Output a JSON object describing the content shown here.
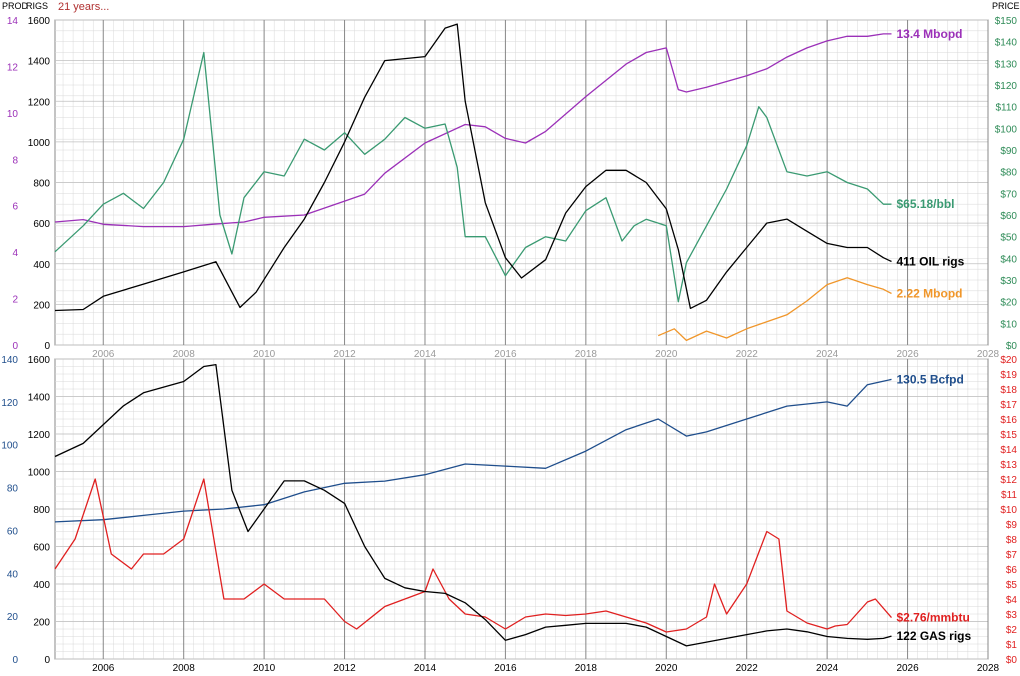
{
  "header": {
    "prod_label": "PROD",
    "rigs_label": "RIGS",
    "period_label": "21 years...",
    "price_label": "PRICE"
  },
  "colors": {
    "oil_prod": "#9b30b8",
    "oil_price": "#3a9a72",
    "oil_rigs": "#000000",
    "ngl_prod": "#f0962a",
    "gas_prod": "#1f4e8c",
    "gas_price": "#e02020",
    "gas_rigs": "#000000",
    "grid_minor": "#d8d8d8",
    "grid_major": "#888888",
    "axis_text_left_oil": "#9b30b8",
    "axis_text_left_gas": "#1f4e8c",
    "axis_text_right_oil": "#2e8b57",
    "axis_text_right_gas": "#e02020"
  },
  "chart_data": [
    {
      "panel": "oil",
      "type": "line",
      "x_ticks": [
        "2006",
        "2008",
        "2010",
        "2012",
        "2014",
        "2016",
        "2018",
        "2020",
        "2022",
        "2024",
        "2026",
        "2028"
      ],
      "xlim": [
        2004.8,
        2028.0
      ],
      "left_axis_prod": {
        "ticks": [
          "0",
          "2",
          "4",
          "6",
          "8",
          "10",
          "12",
          "14"
        ],
        "lim": [
          0,
          14
        ]
      },
      "left_axis_rigs": {
        "ticks": [
          "0",
          "200",
          "400",
          "600",
          "800",
          "1000",
          "1200",
          "1400",
          "1600"
        ],
        "lim": [
          0,
          1600
        ]
      },
      "right_axis_price": {
        "ticks": [
          "$0",
          "$10",
          "$20",
          "$30",
          "$40",
          "$50",
          "$60",
          "$70",
          "$80",
          "$90",
          "$100",
          "$110",
          "$120",
          "$130",
          "$140",
          "$150"
        ],
        "lim": [
          0,
          150
        ]
      },
      "grid": true,
      "series": [
        {
          "key": "oil_prod",
          "axis": "prod",
          "end_label": "13.4 Mbopd",
          "x": [
            2004.8,
            2005.5,
            2006.0,
            2007.0,
            2008.0,
            2008.7,
            2009.5,
            2010.0,
            2011.0,
            2012.0,
            2012.5,
            2013.0,
            2014.0,
            2015.0,
            2015.5,
            2016.0,
            2016.5,
            2017.0,
            2018.0,
            2019.0,
            2019.5,
            2020.0,
            2020.3,
            2020.5,
            2021.0,
            2022.0,
            2022.5,
            2023.0,
            2023.5,
            2024.0,
            2024.5,
            2025.0,
            2025.4,
            2025.6
          ],
          "y": [
            5.3,
            5.4,
            5.2,
            5.1,
            5.1,
            5.2,
            5.3,
            5.5,
            5.6,
            6.2,
            6.5,
            7.4,
            8.7,
            9.5,
            9.4,
            8.9,
            8.7,
            9.2,
            10.7,
            12.1,
            12.6,
            12.8,
            11.0,
            10.9,
            11.1,
            11.6,
            11.9,
            12.4,
            12.8,
            13.1,
            13.3,
            13.3,
            13.4,
            13.4
          ]
        },
        {
          "key": "oil_price",
          "axis": "price",
          "end_label": "$65.18/bbl",
          "x": [
            2004.8,
            2005.5,
            2006.0,
            2006.5,
            2007.0,
            2007.5,
            2008.0,
            2008.5,
            2008.9,
            2009.2,
            2009.5,
            2010.0,
            2010.5,
            2011.0,
            2011.5,
            2012.0,
            2012.5,
            2013.0,
            2013.5,
            2014.0,
            2014.5,
            2014.8,
            2015.0,
            2015.5,
            2016.0,
            2016.5,
            2017.0,
            2017.5,
            2018.0,
            2018.5,
            2018.9,
            2019.2,
            2019.5,
            2020.0,
            2020.3,
            2020.5,
            2021.0,
            2021.5,
            2022.0,
            2022.3,
            2022.5,
            2023.0,
            2023.5,
            2024.0,
            2024.5,
            2025.0,
            2025.4,
            2025.6
          ],
          "y": [
            43,
            55,
            65,
            70,
            63,
            75,
            95,
            135,
            60,
            42,
            68,
            80,
            78,
            95,
            90,
            98,
            88,
            95,
            105,
            100,
            102,
            82,
            50,
            50,
            32,
            45,
            50,
            48,
            62,
            68,
            48,
            55,
            58,
            55,
            20,
            38,
            55,
            72,
            92,
            110,
            105,
            80,
            78,
            80,
            75,
            72,
            65,
            65
          ]
        },
        {
          "key": "oil_rigs",
          "axis": "rigs",
          "end_label": "411 OIL rigs",
          "x": [
            2004.8,
            2005.5,
            2006.0,
            2007.0,
            2008.0,
            2008.8,
            2009.4,
            2009.8,
            2010.5,
            2011.0,
            2011.5,
            2012.0,
            2012.5,
            2013.0,
            2013.5,
            2014.0,
            2014.5,
            2014.8,
            2015.0,
            2015.5,
            2016.0,
            2016.4,
            2017.0,
            2017.5,
            2018.0,
            2018.5,
            2019.0,
            2019.5,
            2020.0,
            2020.3,
            2020.6,
            2021.0,
            2021.5,
            2022.0,
            2022.5,
            2023.0,
            2023.5,
            2024.0,
            2024.5,
            2025.0,
            2025.4,
            2025.6
          ],
          "y": [
            170,
            175,
            240,
            300,
            360,
            410,
            185,
            260,
            480,
            620,
            800,
            1000,
            1220,
            1400,
            1410,
            1420,
            1560,
            1580,
            1200,
            700,
            430,
            330,
            420,
            650,
            780,
            860,
            860,
            800,
            670,
            470,
            180,
            220,
            360,
            480,
            600,
            620,
            560,
            500,
            480,
            480,
            430,
            411
          ]
        },
        {
          "key": "ngl_prod",
          "axis": "prod",
          "end_label": "2.22 Mbopd",
          "x": [
            2019.8,
            2020.2,
            2020.5,
            2021.0,
            2021.5,
            2022.0,
            2022.5,
            2023.0,
            2023.5,
            2024.0,
            2024.5,
            2025.0,
            2025.4,
            2025.6
          ],
          "y": [
            0.4,
            0.7,
            0.2,
            0.6,
            0.3,
            0.7,
            1.0,
            1.3,
            1.9,
            2.6,
            2.9,
            2.6,
            2.4,
            2.22
          ]
        }
      ]
    },
    {
      "panel": "gas",
      "type": "line",
      "x_ticks": [
        "2006",
        "2008",
        "2010",
        "2012",
        "2014",
        "2016",
        "2018",
        "2020",
        "2022",
        "2024",
        "2026",
        "2028"
      ],
      "xlim": [
        2004.8,
        2028.0
      ],
      "left_axis_prod": {
        "ticks": [
          "0",
          "20",
          "40",
          "60",
          "80",
          "100",
          "120",
          "140"
        ],
        "lim": [
          0,
          140
        ]
      },
      "left_axis_rigs": {
        "ticks": [
          "0",
          "200",
          "400",
          "600",
          "800",
          "1000",
          "1200",
          "1400",
          "1600"
        ],
        "lim": [
          0,
          1600
        ]
      },
      "right_axis_price": {
        "ticks": [
          "$0",
          "$1",
          "$2",
          "$3",
          "$4",
          "$5",
          "$6",
          "$7",
          "$8",
          "$9",
          "$10",
          "$11",
          "$12",
          "$13",
          "$14",
          "$15",
          "$16",
          "$17",
          "$18",
          "$19",
          "$20"
        ],
        "lim": [
          0,
          20
        ]
      },
      "grid": true,
      "series": [
        {
          "key": "gas_prod",
          "axis": "prod",
          "end_label": "130.5 Bcfpd",
          "x": [
            2004.8,
            2006.0,
            2007.0,
            2008.0,
            2009.0,
            2010.0,
            2011.0,
            2012.0,
            2013.0,
            2014.0,
            2015.0,
            2016.0,
            2017.0,
            2018.0,
            2019.0,
            2019.8,
            2020.5,
            2021.0,
            2022.0,
            2023.0,
            2024.0,
            2024.5,
            2025.0,
            2025.6
          ],
          "y": [
            64,
            65,
            67,
            69,
            70,
            72,
            78,
            82,
            83,
            86,
            91,
            90,
            89,
            97,
            107,
            112,
            104,
            106,
            112,
            118,
            120,
            118,
            128,
            130.5
          ]
        },
        {
          "key": "gas_price",
          "axis": "price",
          "end_label": "$2.76/mmbtu",
          "x": [
            2004.8,
            2005.3,
            2005.8,
            2006.2,
            2006.7,
            2007.0,
            2007.5,
            2008.0,
            2008.5,
            2009.0,
            2009.5,
            2010.0,
            2010.5,
            2011.0,
            2011.5,
            2012.0,
            2012.3,
            2013.0,
            2013.5,
            2014.0,
            2014.2,
            2014.6,
            2015.0,
            2015.5,
            2016.0,
            2016.5,
            2017.0,
            2017.5,
            2018.0,
            2018.5,
            2019.0,
            2019.5,
            2020.0,
            2020.5,
            2021.0,
            2021.2,
            2021.5,
            2022.0,
            2022.5,
            2022.8,
            2023.0,
            2023.5,
            2024.0,
            2024.2,
            2024.5,
            2025.0,
            2025.2,
            2025.6
          ],
          "y": [
            6,
            8,
            12,
            7,
            6,
            7,
            7,
            8,
            12,
            4,
            4,
            5,
            4,
            4,
            4,
            2.5,
            2,
            3.5,
            4,
            4.5,
            6,
            4,
            3,
            2.8,
            2,
            2.8,
            3,
            2.9,
            3,
            3.2,
            2.8,
            2.4,
            1.8,
            2,
            2.8,
            5,
            3,
            5,
            8.5,
            8,
            3.2,
            2.4,
            2,
            2.2,
            2.3,
            3.8,
            4,
            2.76
          ]
        },
        {
          "key": "gas_rigs",
          "axis": "rigs",
          "end_label": "122 GAS rigs",
          "x": [
            2004.8,
            2005.5,
            2006.0,
            2006.5,
            2007.0,
            2007.5,
            2008.0,
            2008.5,
            2008.8,
            2009.2,
            2009.6,
            2010.0,
            2010.5,
            2011.0,
            2011.5,
            2012.0,
            2012.5,
            2013.0,
            2013.5,
            2014.0,
            2014.5,
            2015.0,
            2015.5,
            2016.0,
            2016.5,
            2017.0,
            2017.5,
            2018.0,
            2018.5,
            2019.0,
            2019.5,
            2020.0,
            2020.5,
            2021.0,
            2021.5,
            2022.0,
            2022.5,
            2023.0,
            2023.5,
            2024.0,
            2024.5,
            2025.0,
            2025.4,
            2025.6
          ],
          "y": [
            1080,
            1150,
            1250,
            1350,
            1420,
            1450,
            1480,
            1560,
            1570,
            900,
            680,
            800,
            950,
            950,
            900,
            830,
            600,
            430,
            380,
            360,
            350,
            300,
            210,
            100,
            130,
            170,
            180,
            190,
            190,
            190,
            170,
            120,
            70,
            90,
            110,
            130,
            150,
            160,
            145,
            120,
            110,
            105,
            110,
            122
          ]
        }
      ]
    }
  ]
}
